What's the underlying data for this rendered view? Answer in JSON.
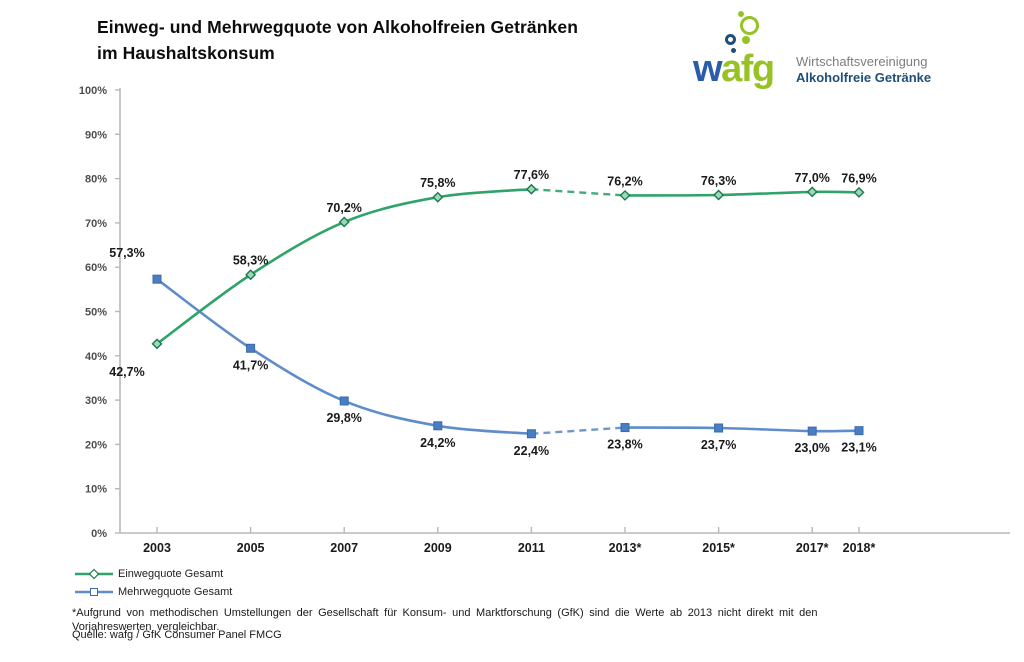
{
  "header": {
    "title_line1": "Einweg- und Mehrwegquote von Alkoholfreien Getränken",
    "title_line2": "im Haushaltskonsum",
    "logo": {
      "word_w": "w",
      "word_afg": "afg",
      "org_line1": "Wirtschaftsvereinigung",
      "org_line2": "Alkoholfreie Getränke"
    }
  },
  "chart_data": {
    "type": "line",
    "title": "Einweg- und Mehrwegquote von Alkoholfreien Getränken im Haushaltskonsum",
    "categories": [
      "2003",
      "2005",
      "2007",
      "2009",
      "2011",
      "2013*",
      "2015*",
      "2017*",
      "2018*"
    ],
    "series": [
      {
        "name": "Einwegquote Gesamt",
        "values": [
          42.7,
          58.3,
          70.2,
          75.8,
          77.6,
          76.2,
          76.3,
          77.0,
          76.9
        ],
        "labels": [
          "42,7%",
          "58,3%",
          "70,2%",
          "75,8%",
          "77,6%",
          "76,2%",
          "76,3%",
          "77,0%",
          "76,9%"
        ],
        "color": "#2ea36a",
        "marker": "diamond",
        "marker_fill": "#9ed8ba",
        "marker_stroke": "#1a7a49",
        "dashed_between": [
          4,
          5
        ]
      },
      {
        "name": "Mehrwegquote Gesamt",
        "values": [
          57.3,
          41.7,
          29.8,
          24.2,
          22.4,
          23.8,
          23.7,
          23.0,
          23.1
        ],
        "labels": [
          "57,3%",
          "41,7%",
          "29,8%",
          "24,2%",
          "22,4%",
          "23,8%",
          "23,7%",
          "23,0%",
          "23,1%"
        ],
        "color": "#5f8dc9",
        "marker": "square",
        "marker_fill": "#4a7ec2",
        "marker_stroke": "#3a69ad",
        "dashed_between": [
          4,
          5
        ]
      }
    ],
    "ylim": [
      0,
      100
    ],
    "ytick_step": 10,
    "ytick_labels": [
      "0%",
      "10%",
      "20%",
      "30%",
      "40%",
      "50%",
      "60%",
      "70%",
      "80%",
      "90%",
      "100%"
    ],
    "xlabel": "",
    "ylabel": "",
    "grid": false,
    "legend_position": "bottom-left",
    "note": "dashed segment between 2011 and 2013 marks methodology change"
  },
  "footnotes": {
    "methodology": "*Aufgrund von methodischen Umstellungen der Gesellschaft für Konsum- und Marktforschung (GfK) sind die Werte ab 2013 nicht direkt mit den Vorjahreswerten vergleichbar.",
    "source": "Quelle: wafg / GfK Consumer Panel FMCG"
  },
  "colors": {
    "einweg_line": "#2ea36a",
    "mehrweg_line": "#5f8dc9",
    "axis": "#b8b8b8",
    "ytick_text": "#4d4d4d",
    "xtick_text": "#1a1a1a",
    "data_label": "#1a1a1a",
    "logo_green": "#97c225",
    "logo_blue": "#2a5caa",
    "logo_navy": "#1f4e79"
  }
}
